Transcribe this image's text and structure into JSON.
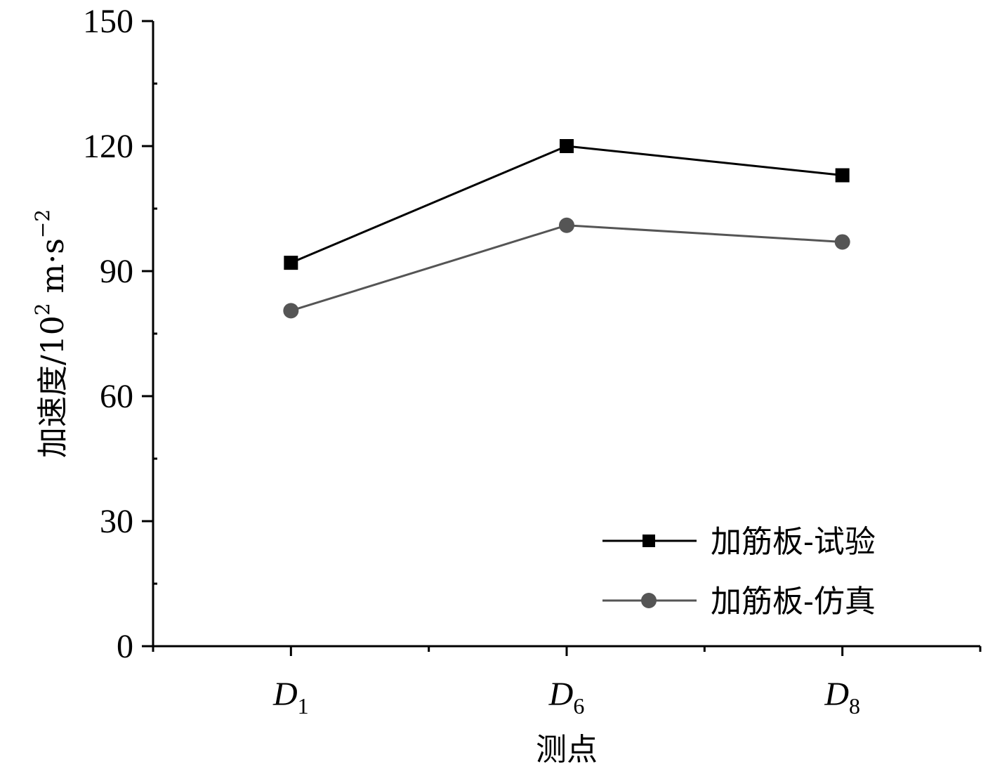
{
  "chart_data": {
    "type": "line",
    "categories": [
      {
        "main": "D",
        "sub": "1"
      },
      {
        "main": "D",
        "sub": "6"
      },
      {
        "main": "D",
        "sub": "8"
      }
    ],
    "series": [
      {
        "name": "加筋板-试验",
        "values": [
          92,
          120,
          113
        ],
        "color": "#000000",
        "marker": "square"
      },
      {
        "name": "加筋板-仿真",
        "values": [
          80.5,
          101,
          97
        ],
        "color": "#555555",
        "marker": "circle"
      }
    ],
    "xlabel": "测点",
    "ylabel": {
      "main": "加速度/10",
      "exp1": "2",
      "unit": " m·s",
      "exp2": "−2"
    },
    "ylim": [
      0,
      150
    ],
    "yticks": [
      "0",
      "30",
      "60",
      "90",
      "120",
      "150"
    ],
    "legend_position": "bottom-right",
    "grid": false
  }
}
